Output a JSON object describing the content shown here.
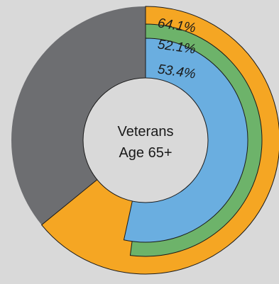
{
  "chart_data": {
    "type": "pie",
    "center_label": [
      "Veterans",
      "Age 65+"
    ],
    "series": [
      {
        "value": 64.1,
        "label": "64.1%",
        "color": "#f5a623"
      },
      {
        "value": 52.1,
        "label": "52.1%",
        "color": "#6db36a"
      },
      {
        "value": 53.4,
        "label": "53.4%",
        "color": "#6aaee0"
      }
    ],
    "remainder_color": "#6d6e71",
    "background": "#d9d9d9",
    "center_color": "#d9d9d9"
  }
}
